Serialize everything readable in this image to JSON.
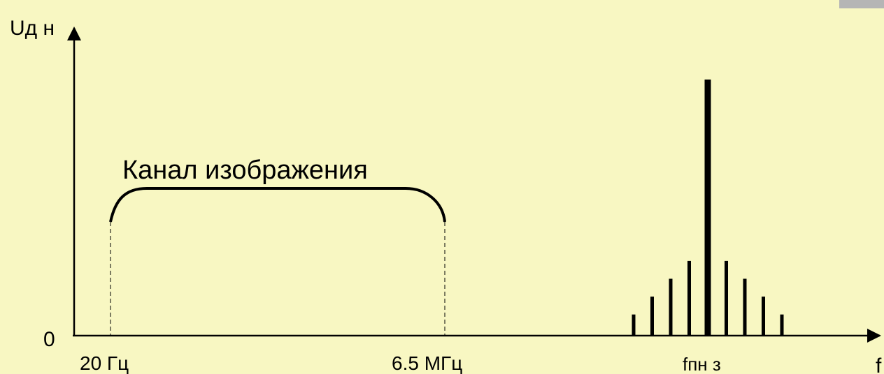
{
  "y_axis_label": "Uд н",
  "origin_label": "0",
  "x_axis_label": "f",
  "channel_label": "Канал изображения",
  "freq_low_label": "20 Гц",
  "freq_high_label": "6.5 МГц",
  "carrier_label": "fпн з",
  "colors": {
    "background": "#f8f7c2",
    "ink": "#000000",
    "corner": "#b5b5b5"
  },
  "chart_data": {
    "type": "bar",
    "spectral_lines_relative_height": [
      0.08,
      0.15,
      0.22,
      0.29,
      1.0,
      0.29,
      0.22,
      0.15,
      0.08
    ]
  }
}
